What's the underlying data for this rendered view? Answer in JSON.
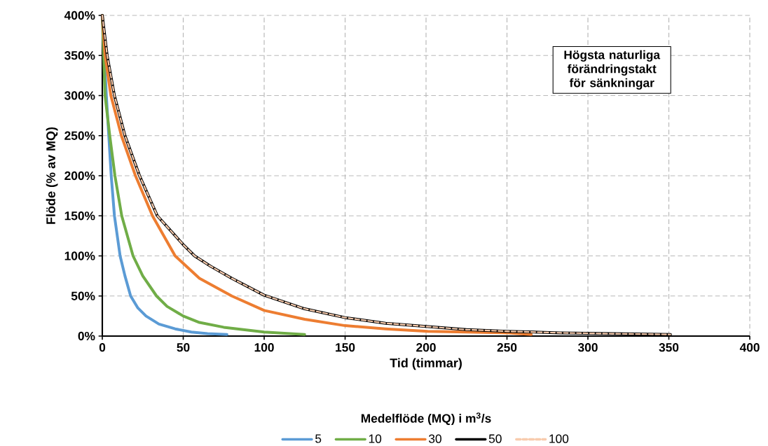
{
  "chart_data": {
    "type": "line",
    "xlabel": "Tid (timmar)",
    "ylabel": "Flöde (% av MQ)",
    "legend_title": "Medelflöde (MQ) i m$^{3}$/s",
    "annotations": [
      "Högsta naturliga förändringstakt för sänkningar"
    ],
    "xlim": [
      0,
      400
    ],
    "xticks": [
      0,
      50,
      100,
      150,
      200,
      250,
      300,
      350,
      400
    ],
    "ylim": [
      0,
      400
    ],
    "yticks": [
      {
        "value": 0,
        "label": "0%"
      },
      {
        "value": 50,
        "label": "50%"
      },
      {
        "value": 100,
        "label": "100%"
      },
      {
        "value": 150,
        "label": "150%"
      },
      {
        "value": 200,
        "label": "200%"
      },
      {
        "value": 250,
        "label": "250%"
      },
      {
        "value": 300,
        "label": "300%"
      },
      {
        "value": 350,
        "label": "350%"
      },
      {
        "value": 400,
        "label": "400%"
      }
    ],
    "grid": true,
    "legend": "bottom",
    "line_style": "solid",
    "series": [
      {
        "name": "5",
        "color": "#5b9bd5",
        "x": [
          0,
          2.5,
          4,
          5.5,
          7.5,
          11,
          14,
          17.5,
          22,
          27,
          35,
          45,
          55,
          65,
          77
        ],
        "values": [
          400,
          300,
          250,
          200,
          150,
          100,
          75,
          50,
          35,
          25,
          15,
          9,
          5,
          3,
          2
        ]
      },
      {
        "name": "10",
        "color": "#70ad47",
        "x": [
          0,
          1.7,
          4.6,
          7.8,
          12,
          19,
          25,
          33.5,
          40,
          50,
          60,
          75,
          100,
          125
        ],
        "values": [
          400,
          300,
          250,
          200,
          150,
          100,
          75,
          50,
          37,
          25,
          17,
          11,
          5,
          2
        ]
      },
      {
        "name": "30",
        "color": "#ed7d31",
        "x": [
          0,
          1.7,
          5.3,
          11.8,
          20.5,
          31,
          45,
          60,
          80,
          100,
          125,
          150,
          175,
          201,
          225,
          251,
          265
        ],
        "values": [
          400,
          350,
          300,
          250,
          200,
          150,
          100,
          72,
          50,
          32,
          21,
          13,
          9,
          6,
          5,
          4,
          2
        ]
      },
      {
        "name": "50",
        "color": "#000000",
        "x": [
          0,
          3,
          7.5,
          14,
          23,
          34,
          50,
          57,
          67,
          80,
          100,
          125,
          150,
          175,
          200,
          225,
          250,
          283,
          315,
          351
        ],
        "values": [
          400,
          350,
          300,
          250,
          200,
          150,
          114,
          100,
          87,
          72,
          51,
          34,
          23,
          16,
          12,
          8,
          6,
          4,
          3,
          2
        ]
      },
      {
        "name": "100",
        "color": "#f8cbad",
        "line_style": "dashed",
        "x": [
          0,
          3,
          7.5,
          14,
          23,
          34,
          50,
          57,
          67,
          80,
          100,
          125,
          150,
          175,
          200,
          225,
          250,
          283,
          315,
          351
        ],
        "values": [
          400,
          350,
          300,
          250,
          200,
          150,
          114,
          100,
          87,
          72,
          51,
          34,
          23,
          16,
          12,
          8,
          6,
          4,
          3,
          2
        ]
      }
    ]
  }
}
